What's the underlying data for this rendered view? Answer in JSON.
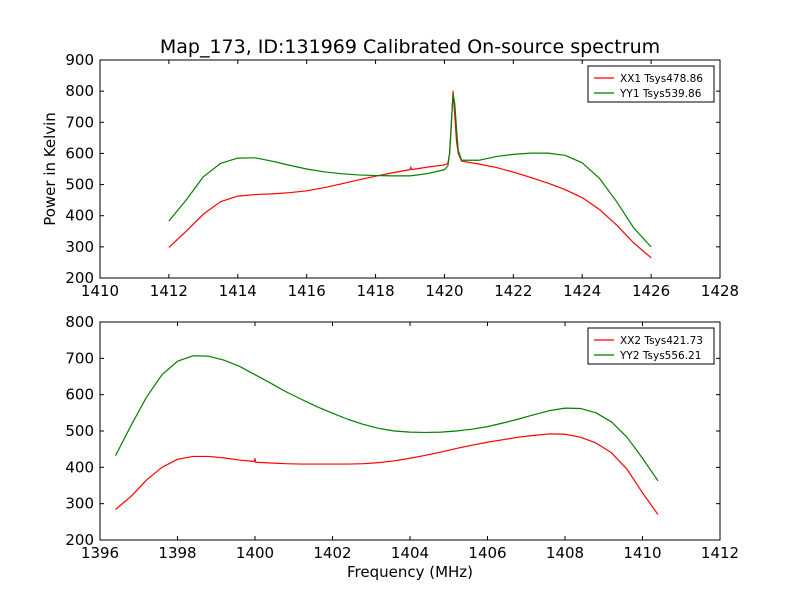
{
  "chart_data": [
    {
      "type": "line",
      "title": "Map_173, ID:131969 Calibrated On-source spectrum",
      "xlabel": "",
      "ylabel": "Power in Kelvin",
      "xlim": [
        1410,
        1428
      ],
      "ylim": [
        200,
        900
      ],
      "xticks": [
        "1410",
        "1412",
        "1414",
        "1416",
        "1418",
        "1420",
        "1422",
        "1424",
        "1426",
        "1428"
      ],
      "yticks": [
        "200",
        "300",
        "400",
        "500",
        "600",
        "700",
        "800",
        "900"
      ],
      "grid": false,
      "legend_position": "top-right",
      "series": [
        {
          "name": "XX1 Tsys478.86",
          "color": "#ff0000",
          "points": [
            [
              1412.0,
              298
            ],
            [
              1412.5,
              350
            ],
            [
              1413.0,
              405
            ],
            [
              1413.5,
              445
            ],
            [
              1414.0,
              463
            ],
            [
              1414.5,
              468
            ],
            [
              1415.0,
              470
            ],
            [
              1415.5,
              474
            ],
            [
              1416.0,
              480
            ],
            [
              1416.5,
              490
            ],
            [
              1417.0,
              502
            ],
            [
              1417.5,
              515
            ],
            [
              1418.0,
              527
            ],
            [
              1418.5,
              538
            ],
            [
              1419.0,
              548
            ],
            [
              1419.02,
              556
            ],
            [
              1419.05,
              548
            ],
            [
              1419.5,
              556
            ],
            [
              1420.0,
              563
            ],
            [
              1420.1,
              568
            ],
            [
              1420.15,
              600
            ],
            [
              1420.2,
              690
            ],
            [
              1420.25,
              800
            ],
            [
              1420.3,
              720
            ],
            [
              1420.35,
              640
            ],
            [
              1420.4,
              600
            ],
            [
              1420.5,
              575
            ],
            [
              1421.0,
              566
            ],
            [
              1421.5,
              555
            ],
            [
              1422.0,
              540
            ],
            [
              1422.5,
              523
            ],
            [
              1423.0,
              505
            ],
            [
              1423.5,
              484
            ],
            [
              1424.0,
              458
            ],
            [
              1424.5,
              420
            ],
            [
              1425.0,
              370
            ],
            [
              1425.5,
              312
            ],
            [
              1426.0,
              265
            ]
          ]
        },
        {
          "name": "YY1 Tsys539.86",
          "color": "#008000",
          "points": [
            [
              1412.0,
              383
            ],
            [
              1412.5,
              450
            ],
            [
              1413.0,
              525
            ],
            [
              1413.5,
              568
            ],
            [
              1414.0,
              585
            ],
            [
              1414.5,
              586
            ],
            [
              1415.0,
              575
            ],
            [
              1415.5,
              562
            ],
            [
              1416.0,
              550
            ],
            [
              1416.5,
              541
            ],
            [
              1417.0,
              535
            ],
            [
              1417.5,
              531
            ],
            [
              1418.0,
              529
            ],
            [
              1418.5,
              528
            ],
            [
              1419.0,
              528
            ],
            [
              1419.5,
              535
            ],
            [
              1420.0,
              548
            ],
            [
              1420.1,
              560
            ],
            [
              1420.15,
              600
            ],
            [
              1420.2,
              700
            ],
            [
              1420.25,
              790
            ],
            [
              1420.3,
              760
            ],
            [
              1420.35,
              680
            ],
            [
              1420.4,
              610
            ],
            [
              1420.5,
              578
            ],
            [
              1421.0,
              578
            ],
            [
              1421.5,
              590
            ],
            [
              1422.0,
              597
            ],
            [
              1422.5,
              601
            ],
            [
              1423.0,
              601
            ],
            [
              1423.5,
              594
            ],
            [
              1424.0,
              570
            ],
            [
              1424.5,
              520
            ],
            [
              1425.0,
              445
            ],
            [
              1425.5,
              360
            ],
            [
              1426.0,
              300
            ]
          ]
        }
      ]
    },
    {
      "type": "line",
      "title": "",
      "xlabel": "Frequency (MHz)",
      "ylabel": "",
      "xlim": [
        1396,
        1412
      ],
      "ylim": [
        200,
        800
      ],
      "xticks": [
        "1396",
        "1398",
        "1400",
        "1402",
        "1404",
        "1406",
        "1408",
        "1410",
        "1412"
      ],
      "yticks": [
        "200",
        "300",
        "400",
        "500",
        "600",
        "700",
        "800"
      ],
      "grid": false,
      "legend_position": "top-right",
      "series": [
        {
          "name": "XX2 Tsys421.73",
          "color": "#ff0000",
          "points": [
            [
              1396.4,
              284
            ],
            [
              1396.8,
              320
            ],
            [
              1397.2,
              365
            ],
            [
              1397.6,
              400
            ],
            [
              1398.0,
              422
            ],
            [
              1398.4,
              430
            ],
            [
              1398.8,
              430
            ],
            [
              1399.2,
              426
            ],
            [
              1399.6,
              420
            ],
            [
              1399.98,
              416
            ],
            [
              1400.0,
              424
            ],
            [
              1400.02,
              414
            ],
            [
              1400.4,
              412
            ],
            [
              1400.8,
              410
            ],
            [
              1401.2,
              409
            ],
            [
              1401.6,
              409
            ],
            [
              1402.0,
              409
            ],
            [
              1402.4,
              409
            ],
            [
              1402.8,
              410
            ],
            [
              1403.2,
              413
            ],
            [
              1403.6,
              418
            ],
            [
              1404.0,
              425
            ],
            [
              1404.4,
              433
            ],
            [
              1404.8,
              442
            ],
            [
              1405.2,
              452
            ],
            [
              1405.6,
              461
            ],
            [
              1406.0,
              469
            ],
            [
              1406.4,
              476
            ],
            [
              1406.8,
              483
            ],
            [
              1407.2,
              488
            ],
            [
              1407.6,
              492
            ],
            [
              1408.0,
              491
            ],
            [
              1408.4,
              483
            ],
            [
              1408.8,
              467
            ],
            [
              1409.2,
              440
            ],
            [
              1409.6,
              395
            ],
            [
              1410.0,
              330
            ],
            [
              1410.4,
              270
            ]
          ]
        },
        {
          "name": "YY2 Tsys556.21",
          "color": "#008000",
          "points": [
            [
              1396.4,
              432
            ],
            [
              1396.8,
              515
            ],
            [
              1397.2,
              593
            ],
            [
              1397.6,
              655
            ],
            [
              1398.0,
              692
            ],
            [
              1398.4,
              707
            ],
            [
              1398.8,
              706
            ],
            [
              1399.2,
              695
            ],
            [
              1399.6,
              678
            ],
            [
              1400.0,
              655
            ],
            [
              1400.4,
              632
            ],
            [
              1400.8,
              608
            ],
            [
              1401.2,
              587
            ],
            [
              1401.6,
              567
            ],
            [
              1402.0,
              549
            ],
            [
              1402.4,
              532
            ],
            [
              1402.8,
              518
            ],
            [
              1403.2,
              507
            ],
            [
              1403.6,
              500
            ],
            [
              1404.0,
              497
            ],
            [
              1404.4,
              496
            ],
            [
              1404.8,
              497
            ],
            [
              1405.2,
              500
            ],
            [
              1405.6,
              505
            ],
            [
              1406.0,
              512
            ],
            [
              1406.4,
              522
            ],
            [
              1406.8,
              533
            ],
            [
              1407.2,
              545
            ],
            [
              1407.6,
              556
            ],
            [
              1408.0,
              563
            ],
            [
              1408.4,
              562
            ],
            [
              1408.8,
              550
            ],
            [
              1409.2,
              525
            ],
            [
              1409.6,
              483
            ],
            [
              1410.0,
              425
            ],
            [
              1410.4,
              363
            ]
          ]
        }
      ]
    }
  ]
}
